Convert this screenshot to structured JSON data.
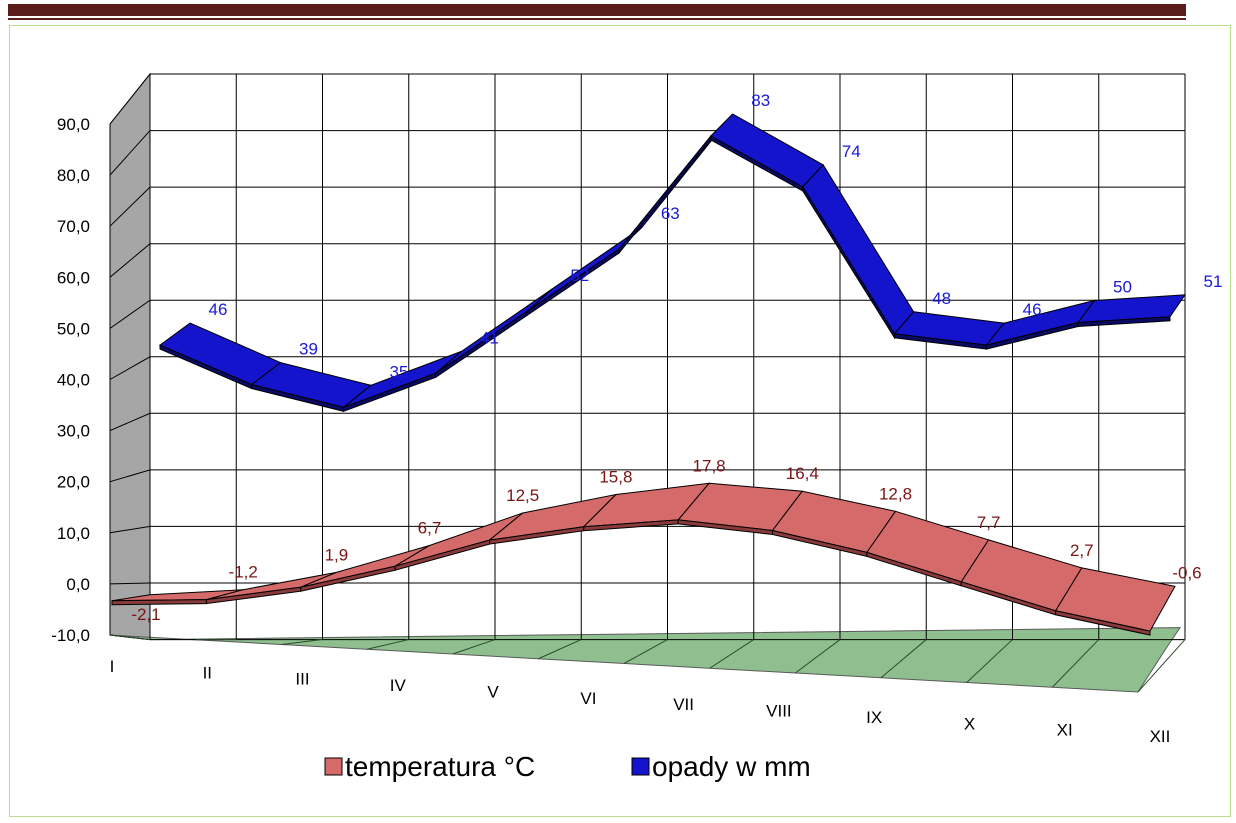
{
  "chart_data": {
    "type": "line",
    "title": "",
    "xlabel": "",
    "ylabel": "",
    "categories": [
      "I",
      "II",
      "III",
      "IV",
      "V",
      "VI",
      "VII",
      "VIII",
      "IX",
      "X",
      "XI",
      "XII"
    ],
    "ylim": [
      -10,
      90
    ],
    "yticks": [
      "-10,0",
      "0,0",
      "10,0",
      "20,0",
      "30,0",
      "40,0",
      "50,0",
      "60,0",
      "70,0",
      "80,0",
      "90,0"
    ],
    "grid": true,
    "legend_position": "bottom",
    "series": [
      {
        "name": "temperatura °C",
        "color": "#d46a6a",
        "values": [
          -2.1,
          -1.2,
          1.9,
          6.7,
          12.5,
          15.8,
          17.8,
          16.4,
          12.8,
          7.7,
          2.7,
          -0.6
        ],
        "labels": [
          "-2,1",
          "-1,2",
          "1,9",
          "6,7",
          "12,5",
          "15,8",
          "17,8",
          "16,4",
          "12,8",
          "7,7",
          "2,7",
          "-0,6"
        ]
      },
      {
        "name": "opady w mm",
        "color": "#1414cc",
        "values": [
          46,
          39,
          35,
          41,
          52,
          63,
          83,
          74,
          48,
          46,
          50,
          51
        ],
        "labels": [
          "46",
          "39",
          "35",
          "41",
          "52",
          "63",
          "83",
          "74",
          "48",
          "46",
          "50",
          "51"
        ]
      }
    ]
  }
}
